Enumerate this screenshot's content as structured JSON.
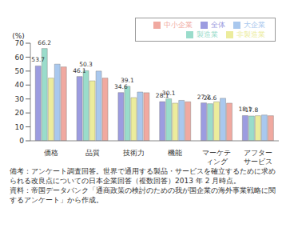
{
  "chart_data": {
    "type": "bar",
    "y_label": "(%)",
    "categories": [
      "価格",
      "品質",
      "技術力",
      "機能",
      "マーケティング",
      "アフターサービス"
    ],
    "series": [
      {
        "name": "全体",
        "color": "#9c9ce0",
        "values": [
          53.7,
          46.1,
          34.6,
          28.1,
          27.2,
          18.1
        ],
        "data_labels": true
      },
      {
        "name": "製造業",
        "color": "#9adccb",
        "values": [
          66.2,
          50.3,
          39.1,
          30.1,
          26.6,
          17.8
        ],
        "data_labels": true
      },
      {
        "name": "非製造業",
        "color": "#ecec9c",
        "values": [
          45.0,
          43.0,
          31.0,
          27.0,
          28.0,
          18.0
        ]
      },
      {
        "name": "大企業",
        "color": "#a9c8ee",
        "values": [
          55.0,
          50.0,
          35.0,
          29.0,
          30.5,
          18.5
        ]
      },
      {
        "name": "中小企業",
        "color": "#f0a9a0",
        "values": [
          53.0,
          45.0,
          34.5,
          28.0,
          27.0,
          18.0
        ]
      }
    ],
    "ylim": [
      0,
      70
    ],
    "yticks": [
      0,
      10,
      20,
      30,
      40,
      50,
      60,
      70
    ],
    "legend": "top-right",
    "notes": [
      "備考：アンケート調査回答。世界で通用する製品・サービスを確立するために求められる改良点についての日本企業回答（複数回答）2013 年 2 月時点。",
      "資料：帝国データバンク「通商政策の検討のための我が国企業の海外事業戦略に関するアンケート」から作成。"
    ]
  }
}
